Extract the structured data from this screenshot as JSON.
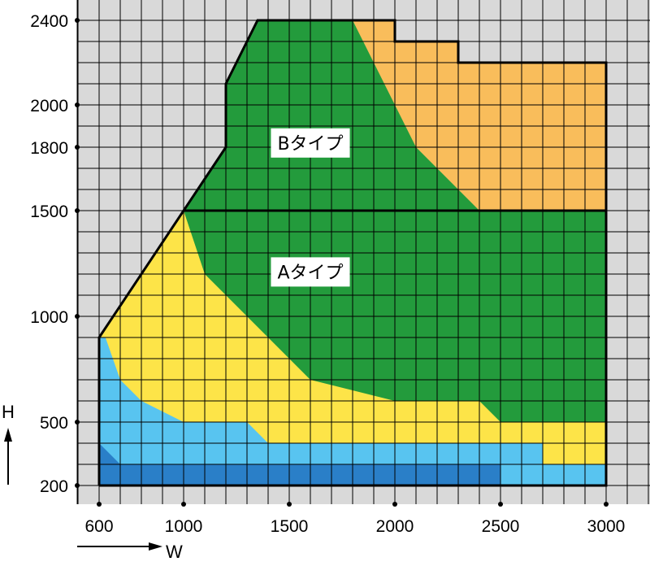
{
  "chart_data": {
    "type": "area",
    "xlabel": "W",
    "ylabel": "H",
    "xlim": [
      600,
      3000
    ],
    "ylim": [
      200,
      2400
    ],
    "x_ticks": [
      "600",
      "1000",
      "1500",
      "2000",
      "2500",
      "3000"
    ],
    "y_ticks": [
      "200",
      "500",
      "1000",
      "1500",
      "1800",
      "2000",
      "2400"
    ],
    "grid": true,
    "colors": {
      "background": "#d9d9d9",
      "grid": "#000000",
      "dark_green": "#239b3c",
      "orange": "#f9bd5b",
      "yellow": "#fde448",
      "light_blue": "#58c4f0",
      "dark_blue": "#2a7fc8"
    },
    "regions": [
      {
        "name": "Aタイプ",
        "label": true,
        "label_at": [
          1600,
          1210
        ],
        "color": "dark_green",
        "points": [
          [
            600,
            200
          ],
          [
            600,
            900
          ],
          [
            1000,
            1500
          ],
          [
            3000,
            1500
          ],
          [
            3000,
            200
          ]
        ]
      },
      {
        "name": "Bタイプ",
        "label": true,
        "label_at": [
          1600,
          1820
        ],
        "color": "dark_green",
        "points": [
          [
            1000,
            1500
          ],
          [
            1200,
            1800
          ],
          [
            1200,
            2100
          ],
          [
            1350,
            2400
          ],
          [
            2000,
            2400
          ],
          [
            2000,
            2300
          ],
          [
            2300,
            2300
          ],
          [
            2300,
            2200
          ],
          [
            3000,
            2200
          ],
          [
            3000,
            1500
          ]
        ]
      },
      {
        "name": "orange",
        "label": false,
        "color": "orange",
        "points": [
          [
            1800,
            2400
          ],
          [
            2000,
            2400
          ],
          [
            2000,
            2300
          ],
          [
            2300,
            2300
          ],
          [
            2300,
            2200
          ],
          [
            3000,
            2200
          ],
          [
            3000,
            1500
          ],
          [
            2400,
            1500
          ],
          [
            2100,
            1800
          ],
          [
            1800,
            2400
          ]
        ]
      },
      {
        "name": "yellow",
        "label": false,
        "color": "yellow",
        "points": [
          [
            600,
            200
          ],
          [
            600,
            900
          ],
          [
            1000,
            1500
          ],
          [
            1100,
            1200
          ],
          [
            1400,
            900
          ],
          [
            1600,
            700
          ],
          [
            2000,
            600
          ],
          [
            2400,
            600
          ],
          [
            2500,
            500
          ],
          [
            3000,
            500
          ],
          [
            3000,
            200
          ]
        ]
      },
      {
        "name": "light-blue",
        "label": false,
        "color": "light_blue",
        "points": [
          [
            600,
            200
          ],
          [
            600,
            900
          ],
          [
            630,
            900
          ],
          [
            700,
            700
          ],
          [
            800,
            600
          ],
          [
            1000,
            500
          ],
          [
            1300,
            500
          ],
          [
            1400,
            400
          ],
          [
            2700,
            400
          ],
          [
            2700,
            300
          ],
          [
            3000,
            300
          ],
          [
            3000,
            200
          ]
        ]
      },
      {
        "name": "dark-blue",
        "label": false,
        "color": "dark_blue",
        "points": [
          [
            600,
            200
          ],
          [
            600,
            400
          ],
          [
            700,
            300
          ],
          [
            2500,
            300
          ],
          [
            2500,
            200
          ]
        ]
      }
    ],
    "boundary": [
      [
        600,
        200
      ],
      [
        600,
        900
      ],
      [
        1000,
        1500
      ],
      [
        1200,
        1800
      ],
      [
        1200,
        2100
      ],
      [
        1350,
        2400
      ],
      [
        2000,
        2400
      ],
      [
        2000,
        2300
      ],
      [
        2300,
        2300
      ],
      [
        2300,
        2200
      ],
      [
        3000,
        2200
      ],
      [
        3000,
        200
      ],
      [
        600,
        200
      ]
    ],
    "divider": [
      [
        1000,
        1500
      ],
      [
        3000,
        1500
      ]
    ]
  }
}
